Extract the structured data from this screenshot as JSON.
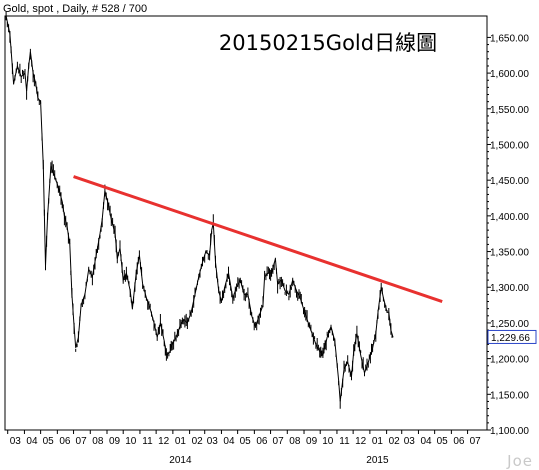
{
  "header": {
    "text": "Gold, spot , Daily, # 528 / 700"
  },
  "watermark": "Joe",
  "last_price_label": "1,229.66",
  "colors": {
    "price": "#000000",
    "trendline": "#e8312f",
    "frame": "#000000",
    "last_label_border": "#2a44c8"
  },
  "chart_data": {
    "type": "line",
    "title": "20150215Gold日線圖",
    "xlabel": "",
    "ylabel": "",
    "ylim": [
      1100,
      1680
    ],
    "y_ticks": [
      "1,650.00",
      "1,600.00",
      "1,550.00",
      "1,500.00",
      "1,450.00",
      "1,400.00",
      "1,350.00",
      "1,300.00",
      "1,250.00",
      "1,200.00",
      "1,150.00",
      "1,100.00"
    ],
    "y_tick_values": [
      1650,
      1600,
      1550,
      1500,
      1450,
      1400,
      1350,
      1300,
      1250,
      1200,
      1150,
      1100
    ],
    "x_ticks": [
      "03",
      "04",
      "05",
      "06",
      "07",
      "08",
      "09",
      "10",
      "11",
      "12",
      "01",
      "02",
      "03",
      "04",
      "05",
      "06",
      "07",
      "08",
      "09",
      "10",
      "11",
      "12",
      "01",
      "02",
      "03",
      "04",
      "05",
      "06",
      "07"
    ],
    "x_tick_dates": [
      "2013-03",
      "2013-04",
      "2013-05",
      "2013-06",
      "2013-07",
      "2013-08",
      "2013-09",
      "2013-10",
      "2013-11",
      "2013-12",
      "2014-01",
      "2014-02",
      "2014-03",
      "2014-04",
      "2014-05",
      "2014-06",
      "2014-07",
      "2014-08",
      "2014-09",
      "2014-10",
      "2014-11",
      "2014-12",
      "2015-01",
      "2015-02",
      "2015-03",
      "2015-04",
      "2015-05",
      "2015-06",
      "2015-07"
    ],
    "year_labels": [
      {
        "label": "2014",
        "date": "2014-01"
      },
      {
        "label": "2015",
        "date": "2015-01"
      }
    ],
    "grid": false,
    "legend": "none",
    "series": [
      {
        "name": "",
        "points": [
          [
            "2013-02-26",
            1680
          ],
          [
            "2013-03-05",
            1655
          ],
          [
            "2013-03-12",
            1585
          ],
          [
            "2013-03-19",
            1610
          ],
          [
            "2013-03-26",
            1595
          ],
          [
            "2013-04-02",
            1600
          ],
          [
            "2013-04-05",
            1575
          ],
          [
            "2013-04-09",
            1610
          ],
          [
            "2013-04-12",
            1630
          ],
          [
            "2013-04-17",
            1600
          ],
          [
            "2013-04-22",
            1585
          ],
          [
            "2013-04-26",
            1565
          ],
          [
            "2013-05-01",
            1560
          ],
          [
            "2013-05-06",
            1470
          ],
          [
            "2013-05-10",
            1330
          ],
          [
            "2013-05-14",
            1400
          ],
          [
            "2013-05-20",
            1470
          ],
          [
            "2013-05-27",
            1455
          ],
          [
            "2013-06-03",
            1440
          ],
          [
            "2013-06-10",
            1420
          ],
          [
            "2013-06-14",
            1400
          ],
          [
            "2013-06-19",
            1385
          ],
          [
            "2013-06-24",
            1360
          ],
          [
            "2013-06-28",
            1290
          ],
          [
            "2013-07-02",
            1245
          ],
          [
            "2013-07-05",
            1215
          ],
          [
            "2013-07-10",
            1230
          ],
          [
            "2013-07-15",
            1275
          ],
          [
            "2013-07-22",
            1290
          ],
          [
            "2013-07-29",
            1325
          ],
          [
            "2013-08-05",
            1315
          ],
          [
            "2013-08-12",
            1345
          ],
          [
            "2013-08-19",
            1375
          ],
          [
            "2013-08-23",
            1395
          ],
          [
            "2013-08-28",
            1435
          ],
          [
            "2013-09-02",
            1420
          ],
          [
            "2013-09-09",
            1395
          ],
          [
            "2013-09-16",
            1375
          ],
          [
            "2013-09-20",
            1340
          ],
          [
            "2013-09-25",
            1355
          ],
          [
            "2013-10-01",
            1310
          ],
          [
            "2013-10-07",
            1320
          ],
          [
            "2013-10-14",
            1295
          ],
          [
            "2013-10-18",
            1270
          ],
          [
            "2013-10-25",
            1320
          ],
          [
            "2013-10-31",
            1345
          ],
          [
            "2013-11-06",
            1305
          ],
          [
            "2013-11-13",
            1285
          ],
          [
            "2013-11-20",
            1270
          ],
          [
            "2013-11-27",
            1250
          ],
          [
            "2013-12-03",
            1230
          ],
          [
            "2013-12-09",
            1250
          ],
          [
            "2013-12-16",
            1225
          ],
          [
            "2013-12-20",
            1205
          ],
          [
            "2013-12-27",
            1210
          ],
          [
            "2013-12-31",
            1220
          ],
          [
            "2014-01-07",
            1230
          ],
          [
            "2014-01-14",
            1245
          ],
          [
            "2014-01-21",
            1255
          ],
          [
            "2014-01-28",
            1250
          ],
          [
            "2014-02-04",
            1265
          ],
          [
            "2014-02-11",
            1290
          ],
          [
            "2014-02-18",
            1315
          ],
          [
            "2014-02-25",
            1335
          ],
          [
            "2014-03-03",
            1350
          ],
          [
            "2014-03-10",
            1345
          ],
          [
            "2014-03-14",
            1380
          ],
          [
            "2014-03-17",
            1390
          ],
          [
            "2014-03-21",
            1335
          ],
          [
            "2014-03-27",
            1295
          ],
          [
            "2014-04-01",
            1280
          ],
          [
            "2014-04-07",
            1300
          ],
          [
            "2014-04-14",
            1320
          ],
          [
            "2014-04-22",
            1285
          ],
          [
            "2014-04-29",
            1300
          ],
          [
            "2014-05-06",
            1310
          ],
          [
            "2014-05-13",
            1290
          ],
          [
            "2014-05-20",
            1290
          ],
          [
            "2014-05-27",
            1260
          ],
          [
            "2014-06-03",
            1245
          ],
          [
            "2014-06-10",
            1260
          ],
          [
            "2014-06-17",
            1275
          ],
          [
            "2014-06-20",
            1315
          ],
          [
            "2014-06-27",
            1320
          ],
          [
            "2014-07-03",
            1320
          ],
          [
            "2014-07-10",
            1340
          ],
          [
            "2014-07-14",
            1305
          ],
          [
            "2014-07-21",
            1310
          ],
          [
            "2014-07-28",
            1295
          ],
          [
            "2014-08-04",
            1290
          ],
          [
            "2014-08-11",
            1310
          ],
          [
            "2014-08-18",
            1295
          ],
          [
            "2014-08-25",
            1285
          ],
          [
            "2014-09-02",
            1265
          ],
          [
            "2014-09-09",
            1250
          ],
          [
            "2014-09-16",
            1235
          ],
          [
            "2014-09-23",
            1220
          ],
          [
            "2014-09-30",
            1210
          ],
          [
            "2014-10-06",
            1205
          ],
          [
            "2014-10-14",
            1230
          ],
          [
            "2014-10-21",
            1245
          ],
          [
            "2014-10-28",
            1225
          ],
          [
            "2014-11-04",
            1170
          ],
          [
            "2014-11-07",
            1140
          ],
          [
            "2014-11-14",
            1185
          ],
          [
            "2014-11-21",
            1195
          ],
          [
            "2014-11-28",
            1175
          ],
          [
            "2014-12-02",
            1210
          ],
          [
            "2014-12-08",
            1235
          ],
          [
            "2014-12-15",
            1205
          ],
          [
            "2014-12-22",
            1180
          ],
          [
            "2014-12-29",
            1195
          ],
          [
            "2015-01-06",
            1215
          ],
          [
            "2015-01-12",
            1235
          ],
          [
            "2015-01-16",
            1265
          ],
          [
            "2015-01-22",
            1300
          ],
          [
            "2015-01-26",
            1285
          ],
          [
            "2015-02-02",
            1265
          ],
          [
            "2015-02-05",
            1265
          ],
          [
            "2015-02-09",
            1240
          ],
          [
            "2015-02-13",
            1229.66
          ]
        ]
      }
    ],
    "trendline": {
      "start": [
        "2013-07-01",
        1455
      ],
      "end": [
        "2015-05-15",
        1280
      ]
    }
  }
}
